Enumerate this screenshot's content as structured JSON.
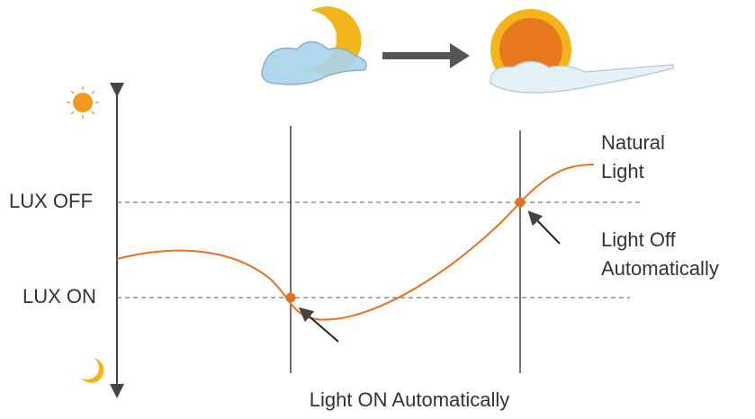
{
  "labels": {
    "lux_off": "LUX OFF",
    "lux_on": "LUX ON",
    "natural_light": [
      "Natural",
      "Light"
    ],
    "light_off": [
      "Light Off",
      "Automatically"
    ],
    "light_on": "Light ON Automatically"
  }
}
